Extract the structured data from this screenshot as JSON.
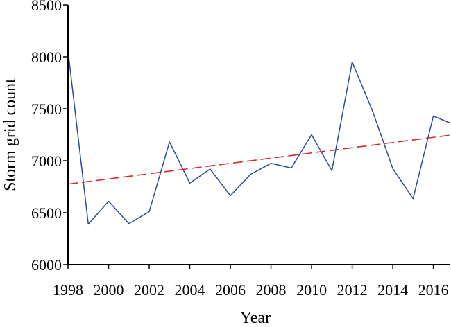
{
  "chart_data": {
    "type": "line",
    "title": "",
    "xlabel": "Year",
    "ylabel": "Storm grid count",
    "xlim": [
      1998,
      2016.8
    ],
    "ylim": [
      6000,
      8500
    ],
    "x_ticks": [
      1998,
      2000,
      2002,
      2004,
      2006,
      2008,
      2010,
      2012,
      2014,
      2016
    ],
    "y_ticks": [
      6000,
      6500,
      7000,
      7500,
      8000,
      8500
    ],
    "grid": false,
    "legend": "none",
    "series": [
      {
        "kind": "observed",
        "color": "#2b4a9b",
        "style": "solid",
        "x": [
          1998,
          1999,
          2000,
          2001,
          2002,
          2003,
          2004,
          2005,
          2006,
          2007,
          2008,
          2009,
          2010,
          2011,
          2012,
          2013,
          2014,
          2015,
          2016,
          2016.8
        ],
        "y": [
          8060,
          6390,
          6610,
          6395,
          6510,
          7180,
          6785,
          6920,
          6665,
          6870,
          6975,
          6930,
          7250,
          6905,
          7950,
          7480,
          6925,
          6635,
          7430,
          7365
        ]
      },
      {
        "kind": "trend",
        "color": "#d62a2a",
        "style": "dashed",
        "x": [
          1998,
          2016.8
        ],
        "y": [
          6775,
          7245
        ]
      }
    ]
  }
}
